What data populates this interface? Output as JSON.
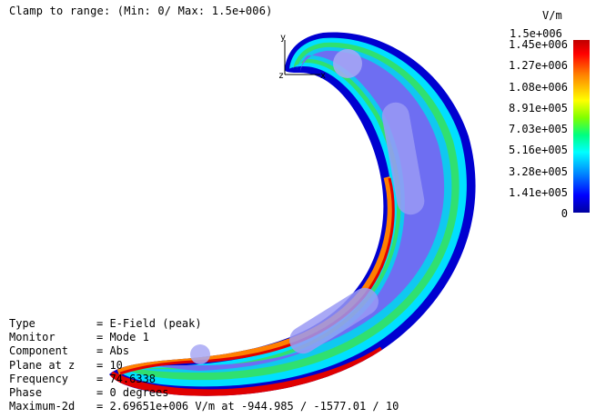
{
  "clamp_text": "Clamp to range: (Min: 0/ Max: 1.5e+006)",
  "axes": {
    "y": "y",
    "x": "x",
    "z": "z"
  },
  "legend": {
    "unit": "V/m",
    "max": "1.5e+006",
    "labels": [
      "1.45e+006",
      "1.27e+006",
      "1.08e+006",
      "8.91e+005",
      "7.03e+005",
      "5.16e+005",
      "3.28e+005",
      "1.41e+005",
      "0"
    ],
    "colors": [
      "#c00000",
      "#ff0000",
      "#ff8000",
      "#ffff00",
      "#80ff00",
      "#00ff80",
      "#00ffff",
      "#0080ff",
      "#0000ff"
    ]
  },
  "info": [
    {
      "key": "Type",
      "value": "= E-Field (peak)"
    },
    {
      "key": "Monitor",
      "value": "= Mode 1"
    },
    {
      "key": "Component",
      "value": "= Abs"
    },
    {
      "key": "Plane at z",
      "value": "= 10"
    },
    {
      "key": "Frequency",
      "value": "= 74.6338"
    },
    {
      "key": "Phase",
      "value": "= 0 degrees"
    },
    {
      "key": "Maximum-2d",
      "value": "= 2.69651e+006 V/m at -944.985 / -1577.01 / 10"
    }
  ],
  "colors": {
    "background": "#ffffff",
    "body_fill": "#6e6ef2",
    "edge_dark": "#0000d0",
    "ring_cyan": "#00e0ff",
    "ring_green": "#20e060",
    "hot_red": "#e00000",
    "hot_orange": "#ff8000"
  }
}
